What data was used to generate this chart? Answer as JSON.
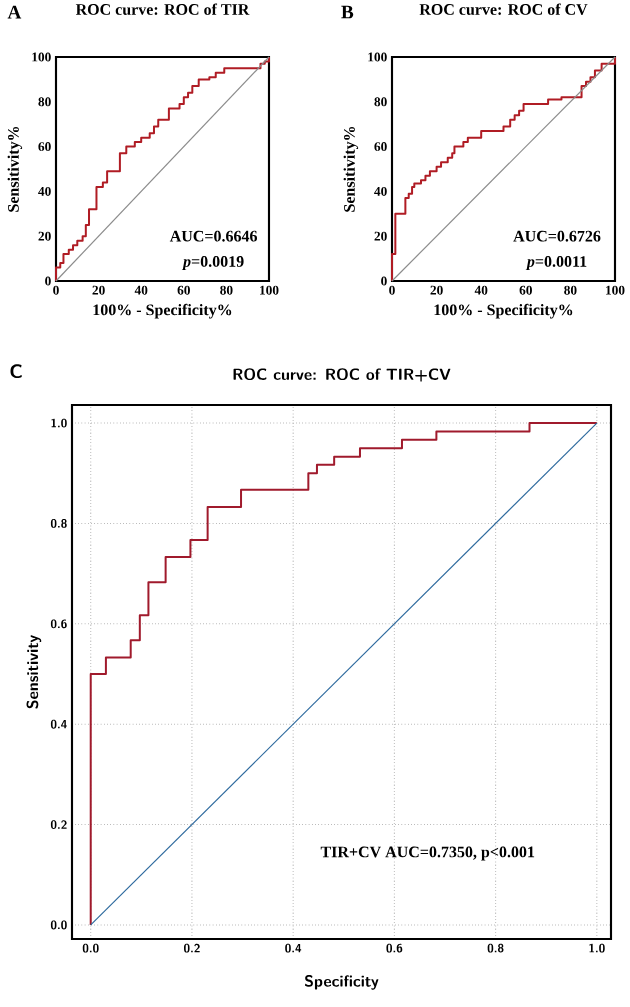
{
  "chart_data": [
    {
      "type": "line",
      "title": "ROC curve: ROC of TIR",
      "xlabel": "100% - Specificity%",
      "ylabel": "Sensitivity%",
      "xlim": [
        0,
        100
      ],
      "ylim": [
        0,
        100
      ],
      "xticks": [
        0,
        20,
        40,
        60,
        80,
        100
      ],
      "yticks": [
        0,
        20,
        40,
        60,
        80,
        100
      ],
      "series": [
        {
          "color": "#b01c24",
          "x": [
            0,
            0,
            2,
            2,
            3.5,
            3.5,
            6,
            6,
            8,
            8,
            10,
            10,
            12.5,
            12.5,
            14,
            14,
            15.5,
            15.5,
            19,
            19,
            22,
            22,
            24,
            24,
            30,
            30,
            33,
            33,
            37,
            37,
            40,
            40,
            44,
            44,
            46,
            46,
            48,
            48,
            53,
            53,
            58,
            58,
            60,
            60,
            62,
            62,
            64,
            64,
            67,
            67,
            72,
            72,
            75,
            75,
            79,
            79,
            96,
            96,
            98,
            98,
            100,
            100
          ],
          "values": [
            0,
            6,
            6,
            8,
            8,
            12,
            12,
            14,
            14,
            16,
            16,
            18,
            18,
            20,
            20,
            25,
            25,
            32,
            32,
            42,
            42,
            44,
            44,
            49,
            49,
            57,
            57,
            60,
            60,
            62,
            62,
            64,
            64,
            66,
            66,
            69,
            69,
            72,
            72,
            77,
            77,
            79,
            79,
            82,
            82,
            84,
            84,
            87,
            87,
            90,
            90,
            91,
            91,
            93,
            93,
            95,
            95,
            97,
            97,
            98,
            98,
            100
          ]
        },
        {
          "color": "#8c8c8c",
          "x": [
            0,
            100
          ],
          "values": [
            0,
            100
          ]
        }
      ],
      "annotations": [
        "A",
        "AUC=0.6646",
        "*p*=0.0019"
      ]
    },
    {
      "type": "line",
      "title": "ROC curve: ROC of CV",
      "xlabel": "100% - Specificity%",
      "ylabel": "Sensitivity%",
      "xlim": [
        0,
        100
      ],
      "ylim": [
        0,
        100
      ],
      "xticks": [
        0,
        20,
        40,
        60,
        80,
        100
      ],
      "yticks": [
        0,
        20,
        40,
        60,
        80,
        100
      ],
      "series": [
        {
          "color": "#b01c24",
          "x": [
            0,
            0,
            1.5,
            1.5,
            6,
            6,
            7.5,
            7.5,
            9,
            9,
            10,
            10,
            13,
            13,
            15,
            15,
            17,
            17,
            20,
            20,
            22,
            22,
            25,
            25,
            27,
            27,
            28,
            28,
            32,
            32,
            34,
            34,
            40,
            40,
            50,
            50,
            53,
            53,
            55,
            55,
            57,
            57,
            59,
            59,
            70,
            70,
            76,
            76,
            85,
            85,
            87,
            87,
            89,
            89,
            91,
            91,
            94,
            94,
            100,
            100
          ],
          "values": [
            0,
            12,
            12,
            30,
            30,
            37,
            37,
            39,
            39,
            42,
            42,
            43.5,
            43.5,
            45,
            45,
            47,
            47,
            49,
            49,
            51,
            51,
            53,
            53,
            55,
            55,
            57,
            57,
            60,
            60,
            62,
            62,
            64,
            64,
            67,
            67,
            69,
            69,
            72,
            72,
            74,
            74,
            76,
            76,
            79,
            79,
            81,
            81,
            82,
            82,
            87,
            87,
            89,
            89,
            91,
            91,
            94,
            94,
            97,
            97,
            100
          ]
        },
        {
          "color": "#8c8c8c",
          "x": [
            0,
            100
          ],
          "values": [
            0,
            100
          ]
        }
      ],
      "annotations": [
        "B",
        "AUC=0.6726",
        "*p*=0.0011"
      ]
    },
    {
      "type": "line",
      "title": "ROC curve: ROC of TIR+CV",
      "xlabel": "Specificity",
      "ylabel": "Sensitivity",
      "xlim": [
        -0.037,
        1.028
      ],
      "ylim": [
        -0.028,
        1.036
      ],
      "xticks": [
        {
          "value": 0,
          "label": "0.0"
        },
        {
          "value": 0.2,
          "label": "0.2"
        },
        {
          "value": 0.4,
          "label": "0.4"
        },
        {
          "value": 0.6,
          "label": "0.6"
        },
        {
          "value": 0.8,
          "label": "0.8"
        },
        {
          "value": 1,
          "label": "1.0"
        }
      ],
      "yticks": [
        {
          "value": 0,
          "label": "0.0"
        },
        {
          "value": 0.2,
          "label": "0.2"
        },
        {
          "value": 0.4,
          "label": "0.4"
        },
        {
          "value": 0.6,
          "label": "0.6"
        },
        {
          "value": 0.8,
          "label": "0.8"
        },
        {
          "value": 1,
          "label": "1.0"
        }
      ],
      "grid": true,
      "series": [
        {
          "color": "#a01a2c",
          "x": [
            0,
            0,
            0.03,
            0.03,
            0.079,
            0.079,
            0.097,
            0.097,
            0.114,
            0.114,
            0.148,
            0.148,
            0.197,
            0.197,
            0.231,
            0.231,
            0.297,
            0.297,
            0.43,
            0.43,
            0.447,
            0.447,
            0.481,
            0.481,
            0.532,
            0.532,
            0.615,
            0.615,
            0.683,
            0.683,
            0.867,
            0.867,
            1
          ],
          "values": [
            0,
            0.5,
            0.5,
            0.533,
            0.533,
            0.567,
            0.567,
            0.617,
            0.617,
            0.683,
            0.683,
            0.733,
            0.733,
            0.767,
            0.767,
            0.833,
            0.833,
            0.867,
            0.867,
            0.9,
            0.9,
            0.917,
            0.917,
            0.933,
            0.933,
            0.95,
            0.95,
            0.967,
            0.967,
            0.983,
            0.983,
            1,
            1
          ]
        },
        {
          "color": "#2e6a9e",
          "x": [
            0,
            1
          ],
          "values": [
            0,
            1
          ]
        }
      ],
      "annotations": [
        "C",
        "TIR+CV AUC=0.7350,   p<0.001"
      ]
    }
  ]
}
